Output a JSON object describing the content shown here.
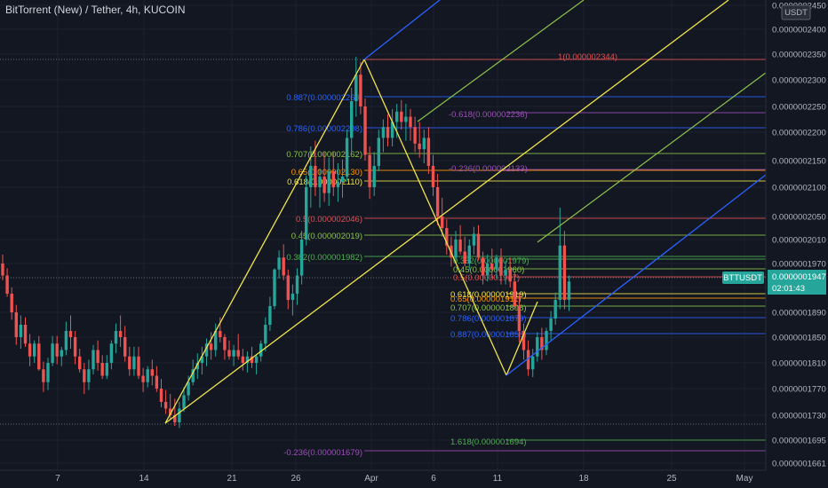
{
  "header": {
    "title": "BitTorrent (New) / Tether, 4h, KUCOIN"
  },
  "colors": {
    "background": "#131722",
    "up": "#26a69a",
    "down": "#ef5350",
    "pitchfork_median": "#f0e44a",
    "pitchfork_outer": "#2962ff",
    "green_line": "#8bc34a",
    "fib_red": "#e05252",
    "fib_purple": "#9c4fb8"
  },
  "price_axis": {
    "currency": "USDT",
    "ticks": [
      "0.0000002450",
      "0.0000002400",
      "0.0000002350",
      "0.0000002300",
      "0.0000002250",
      "0.0000002200",
      "0.0000002150",
      "0.0000002100",
      "0.0000002050",
      "0.0000002010",
      "0.0000001970",
      "0.0000001930",
      "0.0000001890",
      "0.0000001850",
      "0.0000001810",
      "0.0000001770",
      "0.0000001730",
      "0.0000001695",
      "0.0000001661"
    ],
    "last_price_label": "BTTUSDT",
    "last_price": "0.0000001947",
    "countdown": "02:01:43"
  },
  "time_axis": {
    "ticks": [
      "7",
      "14",
      "21",
      "26",
      "Apr",
      "6",
      "11",
      "18",
      "25",
      "May"
    ]
  },
  "fib_labels": [
    {
      "text": "1(0.000002344)",
      "color": "#e05252"
    },
    {
      "text": "0.887(0.000002269)",
      "color": "#2962ff"
    },
    {
      "text": "0.786(0.000002208)",
      "color": "#2962ff"
    },
    {
      "text": "0.707(0.000002162)",
      "color": "#8bc34a"
    },
    {
      "text": "0.65(0.000002130)",
      "color": "#ff9800"
    },
    {
      "text": "0.618(0.000002110)",
      "color": "#f0e44a"
    },
    {
      "text": "0.5(0.000002046)",
      "color": "#e05252"
    },
    {
      "text": "0.45(0.000002019)",
      "color": "#8bc34a"
    },
    {
      "text": "0.382(0.000001982)",
      "color": "#4caf50"
    },
    {
      "text": "-0.618(0.000002236)",
      "color": "#9c4fb8"
    },
    {
      "text": "-0.236(0.000002133)",
      "color": "#9c4fb8"
    },
    {
      "text": "0.382(0.000001979)",
      "color": "#4caf50"
    },
    {
      "text": "0.45(0.000001960)",
      "color": "#8bc34a"
    },
    {
      "text": "0.5(0.000001947)",
      "color": "#e05252"
    },
    {
      "text": "0.618(0.000001919)",
      "color": "#f0e44a"
    },
    {
      "text": "0.65(0.000001911)",
      "color": "#ff9800"
    },
    {
      "text": "0.707(0.000001898)",
      "color": "#8bc34a"
    },
    {
      "text": "0.786(0.000001879)",
      "color": "#2962ff"
    },
    {
      "text": "0.887(0.000001856)",
      "color": "#2962ff"
    },
    {
      "text": "1.618(0.000001694)",
      "color": "#4caf50"
    },
    {
      "text": "-0.236(0.000001679)",
      "color": "#9c4fb8"
    }
  ],
  "chart_data": {
    "type": "candlestick",
    "symbol": "BTTUSDT",
    "interval": "4h",
    "exchange": "KUCOIN",
    "ylim": [
      1.655e-07,
      2.455e-07
    ],
    "last_price": 1.947e-07,
    "swing_points": [
      {
        "date": "Mar 15",
        "price": 1.72e-07
      },
      {
        "date": "Mar 30",
        "price": 2.34e-07
      },
      {
        "date": "Apr 11",
        "price": 1.79e-07
      }
    ],
    "fib_levels": {
      "set_1": [
        {
          "ratio": 1,
          "price": 2.344e-06
        },
        {
          "ratio": 0.887,
          "price": 2.269e-06
        },
        {
          "ratio": 0.786,
          "price": 2.208e-06
        },
        {
          "ratio": 0.707,
          "price": 2.162e-06
        },
        {
          "ratio": 0.65,
          "price": 2.13e-06
        },
        {
          "ratio": 0.618,
          "price": 2.11e-06
        },
        {
          "ratio": 0.5,
          "price": 2.046e-06
        },
        {
          "ratio": 0.45,
          "price": 2.019e-06
        },
        {
          "ratio": 0.382,
          "price": 1.982e-06
        }
      ],
      "set_2": [
        {
          "ratio": -0.618,
          "price": 2.236e-06
        },
        {
          "ratio": -0.236,
          "price": 2.133e-06
        },
        {
          "ratio": 0.382,
          "price": 1.979e-06
        },
        {
          "ratio": 0.45,
          "price": 1.96e-06
        },
        {
          "ratio": 0.5,
          "price": 1.947e-06
        },
        {
          "ratio": 0.618,
          "price": 1.919e-06
        },
        {
          "ratio": 0.65,
          "price": 1.911e-06
        },
        {
          "ratio": 0.707,
          "price": 1.898e-06
        },
        {
          "ratio": 0.786,
          "price": 1.879e-06
        },
        {
          "ratio": 0.887,
          "price": 1.856e-06
        },
        {
          "ratio": 1.618,
          "price": 1.694e-06
        },
        {
          "ratio": -0.236,
          "price": 1.679e-06
        }
      ]
    },
    "candles": [
      [
        1.97e-07,
        1.985e-07,
        1.942e-07,
        1.95e-07
      ],
      [
        1.95e-07,
        1.962e-07,
        1.915e-07,
        1.92e-07
      ],
      [
        1.92e-07,
        1.93e-07,
        1.878e-07,
        1.89e-07
      ],
      [
        1.89e-07,
        1.902e-07,
        1.838e-07,
        1.85e-07
      ],
      [
        1.85e-07,
        1.885e-07,
        1.832e-07,
        1.87e-07
      ],
      [
        1.87e-07,
        1.882e-07,
        1.835e-07,
        1.84e-07
      ],
      [
        1.84e-07,
        1.855e-07,
        1.805e-07,
        1.82e-07
      ],
      [
        1.82e-07,
        1.845e-07,
        1.81e-07,
        1.84e-07
      ],
      [
        1.84e-07,
        1.852e-07,
        1.798e-07,
        1.8e-07
      ],
      [
        1.8e-07,
        1.812e-07,
        1.765e-07,
        1.78e-07
      ],
      [
        1.78e-07,
        1.818e-07,
        1.768e-07,
        1.81e-07
      ],
      [
        1.81e-07,
        1.852e-07,
        1.805e-07,
        1.84e-07
      ],
      [
        1.84e-07,
        1.852e-07,
        1.808e-07,
        1.82e-07
      ],
      [
        1.82e-07,
        1.835e-07,
        1.805e-07,
        1.83e-07
      ],
      [
        1.83e-07,
        1.875e-07,
        1.822e-07,
        1.86e-07
      ],
      [
        1.86e-07,
        1.885e-07,
        1.832e-07,
        1.85e-07
      ],
      [
        1.85e-07,
        1.86e-07,
        1.808e-07,
        1.82e-07
      ],
      [
        1.82e-07,
        1.832e-07,
        1.795e-07,
        1.8e-07
      ],
      [
        1.8e-07,
        1.81e-07,
        1.762e-07,
        1.78e-07
      ],
      [
        1.78e-07,
        1.815e-07,
        1.768e-07,
        1.8e-07
      ],
      [
        1.8e-07,
        1.838e-07,
        1.792e-07,
        1.83e-07
      ],
      [
        1.83e-07,
        1.845e-07,
        1.798e-07,
        1.81e-07
      ],
      [
        1.81e-07,
        1.822e-07,
        1.785e-07,
        1.79e-07
      ],
      [
        1.79e-07,
        1.822e-07,
        1.785e-07,
        1.81e-07
      ],
      [
        1.81e-07,
        1.845e-07,
        1.8e-07,
        1.84e-07
      ],
      [
        1.84e-07,
        1.872e-07,
        1.825e-07,
        1.86e-07
      ],
      [
        1.86e-07,
        1.885e-07,
        1.835e-07,
        1.85e-07
      ],
      [
        1.85e-07,
        1.868e-07,
        1.812e-07,
        1.82e-07
      ],
      [
        1.82e-07,
        1.835e-07,
        1.79e-07,
        1.8e-07
      ],
      [
        1.8e-07,
        1.835e-07,
        1.79e-07,
        1.82e-07
      ],
      [
        1.82e-07,
        1.835e-07,
        1.785e-07,
        1.79e-07
      ],
      [
        1.79e-07,
        1.802e-07,
        1.765e-07,
        1.78e-07
      ],
      [
        1.78e-07,
        1.805e-07,
        1.772e-07,
        1.8e-07
      ],
      [
        1.8e-07,
        1.815e-07,
        1.775e-07,
        1.79e-07
      ],
      [
        1.79e-07,
        1.805e-07,
        1.765e-07,
        1.77e-07
      ],
      [
        1.77e-07,
        1.785e-07,
        1.742e-07,
        1.75e-07
      ],
      [
        1.75e-07,
        1.768e-07,
        1.732e-07,
        1.74e-07
      ],
      [
        1.74e-07,
        1.762e-07,
        1.725e-07,
        1.73e-07
      ],
      [
        1.73e-07,
        1.755e-07,
        1.715e-07,
        1.72e-07
      ],
      [
        1.72e-07,
        1.75e-07,
        1.712e-07,
        1.74e-07
      ],
      [
        1.74e-07,
        1.772e-07,
        1.735e-07,
        1.76e-07
      ],
      [
        1.76e-07,
        1.79e-07,
        1.752e-07,
        1.78e-07
      ],
      [
        1.78e-07,
        1.815e-07,
        1.775e-07,
        1.8e-07
      ],
      [
        1.8e-07,
        1.825e-07,
        1.785e-07,
        1.81e-07
      ],
      [
        1.81e-07,
        1.835e-07,
        1.792e-07,
        1.82e-07
      ],
      [
        1.82e-07,
        1.848e-07,
        1.805e-07,
        1.84e-07
      ],
      [
        1.84e-07,
        1.858e-07,
        1.815e-07,
        1.83e-07
      ],
      [
        1.83e-07,
        1.872e-07,
        1.82e-07,
        1.86e-07
      ],
      [
        1.86e-07,
        1.882e-07,
        1.842e-07,
        1.85e-07
      ],
      [
        1.85e-07,
        1.855e-07,
        1.815e-07,
        1.83e-07
      ],
      [
        1.83e-07,
        1.845e-07,
        1.815e-07,
        1.82e-07
      ],
      [
        1.82e-07,
        1.838e-07,
        1.805e-07,
        1.83e-07
      ],
      [
        1.83e-07,
        1.855e-07,
        1.815e-07,
        1.82e-07
      ],
      [
        1.82e-07,
        1.832e-07,
        1.798e-07,
        1.81e-07
      ],
      [
        1.81e-07,
        1.828e-07,
        1.795e-07,
        1.82e-07
      ],
      [
        1.82e-07,
        1.835e-07,
        1.802e-07,
        1.81e-07
      ],
      [
        1.81e-07,
        1.822e-07,
        1.792e-07,
        1.82e-07
      ],
      [
        1.82e-07,
        1.845e-07,
        1.812e-07,
        1.84e-07
      ],
      [
        1.84e-07,
        1.882e-07,
        1.828e-07,
        1.87e-07
      ],
      [
        1.87e-07,
        1.915e-07,
        1.86e-07,
        1.9e-07
      ],
      [
        1.9e-07,
        1.962e-07,
        1.895e-07,
        1.96e-07
      ],
      [
        1.96e-07,
        1.992e-07,
        1.945e-07,
        1.98e-07
      ],
      [
        1.98e-07,
        2.002e-07,
        1.942e-07,
        1.95e-07
      ],
      [
        1.95e-07,
        1.96e-07,
        1.895e-07,
        1.91e-07
      ],
      [
        1.91e-07,
        1.935e-07,
        1.885e-07,
        1.92e-07
      ],
      [
        1.92e-07,
        1.962e-07,
        1.902e-07,
        1.95e-07
      ],
      [
        1.95e-07,
        2.025e-07,
        1.935e-07,
        2.01e-07
      ],
      [
        2.01e-07,
        2.122e-07,
        2e-07,
        2.1e-07
      ],
      [
        2.1e-07,
        2.175e-07,
        2.065e-07,
        2.14e-07
      ],
      [
        2.14e-07,
        2.185e-07,
        2.085e-07,
        2.1e-07
      ],
      [
        2.1e-07,
        2.135e-07,
        2.065e-07,
        2.12e-07
      ],
      [
        2.12e-07,
        2.165e-07,
        2.075e-07,
        2.09e-07
      ],
      [
        2.09e-07,
        2.155e-07,
        2.068e-07,
        2.13e-07
      ],
      [
        2.13e-07,
        2.165e-07,
        2.085e-07,
        2.1e-07
      ],
      [
        2.1e-07,
        2.145e-07,
        2.075e-07,
        2.11e-07
      ],
      [
        2.11e-07,
        2.152e-07,
        2.082e-07,
        2.12e-07
      ],
      [
        2.12e-07,
        2.205e-07,
        2.11e-07,
        2.19e-07
      ],
      [
        2.19e-07,
        2.285e-07,
        2.165e-07,
        2.26e-07
      ],
      [
        2.26e-07,
        2.345e-07,
        2.23e-07,
        2.31e-07
      ],
      [
        2.31e-07,
        2.335e-07,
        2.235e-07,
        2.25e-07
      ],
      [
        2.25e-07,
        2.265e-07,
        2.15e-07,
        2.16e-07
      ],
      [
        2.16e-07,
        2.175e-07,
        2.08e-07,
        2.1e-07
      ],
      [
        2.1e-07,
        2.165e-07,
        2.085e-07,
        2.14e-07
      ],
      [
        2.14e-07,
        2.205e-07,
        2.13e-07,
        2.19e-07
      ],
      [
        2.19e-07,
        2.225e-07,
        2.165e-07,
        2.21e-07
      ],
      [
        2.21e-07,
        2.235e-07,
        2.175e-07,
        2.19e-07
      ],
      [
        2.19e-07,
        2.245e-07,
        2.175e-07,
        2.22e-07
      ],
      [
        2.22e-07,
        2.255e-07,
        2.19e-07,
        2.24e-07
      ],
      [
        2.24e-07,
        2.262e-07,
        2.205e-07,
        2.22e-07
      ],
      [
        2.22e-07,
        2.255e-07,
        2.185e-07,
        2.23e-07
      ],
      [
        2.23e-07,
        2.245e-07,
        2.185e-07,
        2.21e-07
      ],
      [
        2.21e-07,
        2.23e-07,
        2.165e-07,
        2.18e-07
      ],
      [
        2.18e-07,
        2.22e-07,
        2.155e-07,
        2.17e-07
      ],
      [
        2.17e-07,
        2.205e-07,
        2.145e-07,
        2.19e-07
      ],
      [
        2.19e-07,
        2.21e-07,
        2.125e-07,
        2.14e-07
      ],
      [
        2.14e-07,
        2.16e-07,
        2.085e-07,
        2.1e-07
      ],
      [
        2.1e-07,
        2.125e-07,
        2.035e-07,
        2.05e-07
      ],
      [
        2.05e-07,
        2.082e-07,
        2.015e-07,
        2.03e-07
      ],
      [
        2.03e-07,
        2.045e-07,
        1.985e-07,
        2e-07
      ],
      [
        2e-07,
        2.015e-07,
        1.965e-07,
        1.98e-07
      ],
      [
        1.98e-07,
        2.025e-07,
        1.97e-07,
        2.01e-07
      ],
      [
        2.01e-07,
        2.035e-07,
        1.985e-07,
        1.99e-07
      ],
      [
        1.99e-07,
        2.015e-07,
        1.965e-07,
        1.97e-07
      ],
      [
        1.97e-07,
        2.01e-07,
        1.96e-07,
        2e-07
      ],
      [
        2e-07,
        2.032e-07,
        1.985e-07,
        2.02e-07
      ],
      [
        2.02e-07,
        2.035e-07,
        1.975e-07,
        1.98e-07
      ],
      [
        1.98e-07,
        1.99e-07,
        1.935e-07,
        1.95e-07
      ],
      [
        1.95e-07,
        1.985e-07,
        1.94e-07,
        1.97e-07
      ],
      [
        1.97e-07,
        1.995e-07,
        1.945e-07,
        1.96e-07
      ],
      [
        1.96e-07,
        1.985e-07,
        1.945e-07,
        1.98e-07
      ],
      [
        1.98e-07,
        1.995e-07,
        1.935e-07,
        1.95e-07
      ],
      [
        1.95e-07,
        1.975e-07,
        1.935e-07,
        1.96e-07
      ],
      [
        1.96e-07,
        1.98e-07,
        1.93e-07,
        1.94e-07
      ],
      [
        1.94e-07,
        1.955e-07,
        1.895e-07,
        1.9e-07
      ],
      [
        1.9e-07,
        1.92e-07,
        1.842e-07,
        1.86e-07
      ],
      [
        1.86e-07,
        1.872e-07,
        1.815e-07,
        1.83e-07
      ],
      [
        1.83e-07,
        1.845e-07,
        1.79e-07,
        1.8e-07
      ],
      [
        1.8e-07,
        1.832e-07,
        1.788e-07,
        1.82e-07
      ],
      [
        1.82e-07,
        1.858e-07,
        1.812e-07,
        1.85e-07
      ],
      [
        1.85e-07,
        1.865e-07,
        1.815e-07,
        1.83e-07
      ],
      [
        1.83e-07,
        1.865e-07,
        1.822e-07,
        1.86e-07
      ],
      [
        1.86e-07,
        1.892e-07,
        1.845e-07,
        1.88e-07
      ],
      [
        1.88e-07,
        1.922e-07,
        1.87e-07,
        1.91e-07
      ],
      [
        1.91e-07,
        2.065e-07,
        1.895e-07,
        2e-07
      ],
      [
        2e-07,
        2.025e-07,
        1.895e-07,
        1.91e-07
      ],
      [
        1.91e-07,
        1.95e-07,
        1.892e-07,
        1.94e-07
      ]
    ]
  }
}
